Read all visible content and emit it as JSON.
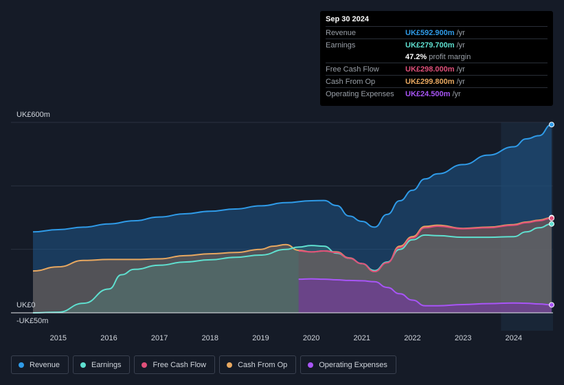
{
  "tooltip": {
    "date": "Sep 30 2024",
    "rows": [
      {
        "label": "Revenue",
        "value": "UK£592.900m",
        "unit": "/yr",
        "color": "#2f9be8"
      },
      {
        "label": "Earnings",
        "value": "UK£279.700m",
        "unit": "/yr",
        "color": "#5fe0d0"
      },
      {
        "label": "",
        "value": "47.2%",
        "unit": "profit margin",
        "color": "#ffffff"
      },
      {
        "label": "Free Cash Flow",
        "value": "UK£298.000m",
        "unit": "/yr",
        "color": "#e0507a"
      },
      {
        "label": "Cash From Op",
        "value": "UK£299.800m",
        "unit": "/yr",
        "color": "#e8a860"
      },
      {
        "label": "Operating Expenses",
        "value": "UK£24.500m",
        "unit": "/yr",
        "color": "#a855f7"
      }
    ]
  },
  "legend": [
    {
      "label": "Revenue",
      "color": "#2f9be8"
    },
    {
      "label": "Earnings",
      "color": "#5fe0d0"
    },
    {
      "label": "Free Cash Flow",
      "color": "#e0507a"
    },
    {
      "label": "Cash From Op",
      "color": "#e8a860"
    },
    {
      "label": "Operating Expenses",
      "color": "#a855f7"
    }
  ],
  "chart_data": {
    "type": "area",
    "title": "",
    "ylim": [
      -50,
      600
    ],
    "y_labels": {
      "top": "UK£600m",
      "zero": "UK£0",
      "bottom": "-UK£50m"
    },
    "x_ticks": [
      "2015",
      "2016",
      "2017",
      "2018",
      "2019",
      "2020",
      "2021",
      "2022",
      "2023",
      "2024"
    ],
    "xlim": [
      2014.5,
      2024.75
    ],
    "highlight_from": 2023.75,
    "series": [
      {
        "name": "Revenue",
        "color": "#2f9be8",
        "x": [
          2014.5,
          2015.0,
          2015.5,
          2016.0,
          2016.5,
          2017.0,
          2017.5,
          2018.0,
          2018.5,
          2019.0,
          2019.5,
          2020.0,
          2020.25,
          2020.5,
          2020.75,
          2021.0,
          2021.25,
          2021.5,
          2021.75,
          2022.0,
          2022.25,
          2022.5,
          2023.0,
          2023.5,
          2024.0,
          2024.25,
          2024.5,
          2024.75
        ],
        "y": [
          255,
          262,
          270,
          280,
          290,
          302,
          312,
          320,
          327,
          337,
          347,
          353,
          354,
          338,
          305,
          288,
          270,
          310,
          353,
          386,
          422,
          438,
          467,
          497,
          523,
          548,
          558,
          593
        ]
      },
      {
        "name": "Cash From Op",
        "color": "#e8a860",
        "x": [
          2014.5,
          2015.0,
          2015.5,
          2016.0,
          2016.5,
          2017.0,
          2017.5,
          2018.0,
          2018.5,
          2019.0,
          2019.25,
          2019.5,
          2019.75,
          2020.0,
          2020.25,
          2020.5,
          2020.75,
          2021.0,
          2021.25,
          2021.5,
          2021.75,
          2022.0,
          2022.25,
          2022.5,
          2023.0,
          2023.5,
          2024.0,
          2024.25,
          2024.5,
          2024.75
        ],
        "y": [
          132,
          145,
          165,
          168,
          168,
          170,
          180,
          186,
          190,
          200,
          210,
          215,
          197,
          192,
          195,
          192,
          173,
          155,
          130,
          158,
          210,
          240,
          272,
          276,
          266,
          270,
          278,
          286,
          292,
          300
        ]
      },
      {
        "name": "Earnings",
        "color": "#5fe0d0",
        "x": [
          2014.5,
          2015.0,
          2015.5,
          2016.0,
          2016.25,
          2016.5,
          2017.0,
          2017.5,
          2018.0,
          2018.5,
          2019.0,
          2019.5,
          2019.75,
          2020.0,
          2020.25,
          2020.5,
          2020.75,
          2021.0,
          2021.25,
          2021.5,
          2021.75,
          2022.0,
          2022.25,
          2022.5,
          2023.0,
          2023.5,
          2024.0,
          2024.25,
          2024.5,
          2024.75
        ],
        "y": [
          0,
          2,
          30,
          75,
          120,
          137,
          150,
          160,
          167,
          175,
          182,
          200,
          207,
          212,
          210,
          188,
          172,
          155,
          133,
          160,
          200,
          230,
          245,
          243,
          238,
          238,
          240,
          255,
          268,
          280
        ]
      },
      {
        "name": "Free Cash Flow",
        "color": "#e0507a",
        "x": [
          2019.75,
          2020.0,
          2020.25,
          2020.5,
          2020.75,
          2021.0,
          2021.25,
          2021.5,
          2021.75,
          2022.0,
          2022.25,
          2022.5,
          2023.0,
          2023.5,
          2024.0,
          2024.25,
          2024.5,
          2024.75
        ],
        "y": [
          195,
          192,
          195,
          190,
          172,
          155,
          130,
          158,
          206,
          236,
          268,
          273,
          265,
          268,
          276,
          284,
          290,
          298
        ]
      },
      {
        "name": "Operating Expenses",
        "color": "#a855f7",
        "x": [
          2019.75,
          2020.0,
          2020.25,
          2020.5,
          2020.75,
          2021.0,
          2021.25,
          2021.5,
          2021.75,
          2022.0,
          2022.25,
          2022.5,
          2023.0,
          2023.5,
          2024.0,
          2024.25,
          2024.5,
          2024.75
        ],
        "y": [
          106,
          107,
          106,
          104,
          102,
          101,
          98,
          80,
          60,
          40,
          22,
          22,
          26,
          29,
          31,
          30,
          28,
          25
        ]
      }
    ]
  }
}
